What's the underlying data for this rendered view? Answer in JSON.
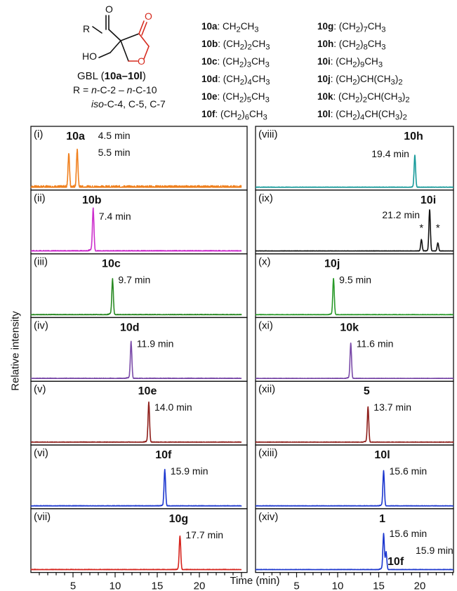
{
  "structure": {
    "r_label": "R",
    "ho_label": "HO",
    "name_prefix": "GBL (",
    "name_bold": "10a–10l",
    "name_suffix": ")",
    "r_range_line1": "R = n-C-2 – n-C-10",
    "r_range_line2": "iso-C-4, C-5, C-7",
    "colors": {
      "lactone": "#d62b1f",
      "skeleton": "#111111"
    }
  },
  "substituents": [
    {
      "id": "10a",
      "formula": "CH2CH3"
    },
    {
      "id": "10b",
      "formula": "(CH2)2CH3"
    },
    {
      "id": "10c",
      "formula": "(CH2)3CH3"
    },
    {
      "id": "10d",
      "formula": "(CH2)4CH3"
    },
    {
      "id": "10e",
      "formula": "(CH2)5CH3"
    },
    {
      "id": "10f",
      "formula": "(CH2)6CH3"
    },
    {
      "id": "10g",
      "formula": "(CH2)7CH3"
    },
    {
      "id": "10h",
      "formula": "(CH2)8CH3"
    },
    {
      "id": "10i",
      "formula": "(CH2)9CH3"
    },
    {
      "id": "10j",
      "formula": "(CH2)CH(CH3)2"
    },
    {
      "id": "10k",
      "formula": "(CH2)2CH(CH3)2"
    },
    {
      "id": "10l",
      "formula": "(CH2)4CH(CH3)2"
    }
  ],
  "axes": {
    "xlabel": "Time (min)",
    "ylabel": "Relative intensity",
    "xticks": [
      5,
      10,
      15,
      20
    ],
    "xlim": [
      0,
      25
    ]
  },
  "chart_data": [
    {
      "type": "line",
      "panel": "(i)",
      "compound": "10a",
      "color": "#f0801e",
      "peaks": [
        {
          "x": 4.5,
          "y": 0.6
        },
        {
          "x": 5.5,
          "y": 0.65
        }
      ],
      "annotations": [
        "4.5 min",
        "5.5 min"
      ],
      "noise": 0.06,
      "tail": 0.05
    },
    {
      "type": "line",
      "panel": "(ii)",
      "compound": "10b",
      "color": "#cc2ecc",
      "peaks": [
        {
          "x": 7.4,
          "y": 0.72
        }
      ],
      "annotations": [
        "7.4 min"
      ],
      "noise": 0.02,
      "tail": 0.25
    },
    {
      "type": "line",
      "panel": "(iii)",
      "compound": "10c",
      "color": "#2a8a24",
      "peaks": [
        {
          "x": 9.7,
          "y": 0.6
        }
      ],
      "annotations": [
        "9.7 min"
      ],
      "noise": 0.015,
      "tail": 0.2
    },
    {
      "type": "line",
      "panel": "(iv)",
      "compound": "10d",
      "color": "#7a4aa8",
      "peaks": [
        {
          "x": 11.9,
          "y": 0.62
        }
      ],
      "annotations": [
        "11.9 min"
      ],
      "noise": 0.015,
      "tail": 0.2
    },
    {
      "type": "line",
      "panel": "(v)",
      "compound": "10e",
      "color": "#8e1e1a",
      "peaks": [
        {
          "x": 14.0,
          "y": 0.68
        }
      ],
      "annotations": [
        "14.0 min"
      ],
      "noise": 0.012,
      "tail": 0.15
    },
    {
      "type": "line",
      "panel": "(vi)",
      "compound": "10f",
      "color": "#1c37cf",
      "peaks": [
        {
          "x": 15.9,
          "y": 0.62
        }
      ],
      "annotations": [
        "15.9 min"
      ],
      "noise": 0.012,
      "tail": 0.15
    },
    {
      "type": "line",
      "panel": "(vii)",
      "compound": "10g",
      "color": "#d6231c",
      "peaks": [
        {
          "x": 17.7,
          "y": 0.58
        }
      ],
      "annotations": [
        "17.7 min"
      ],
      "noise": 0.012,
      "tail": 0.12
    },
    {
      "type": "line",
      "panel": "(viii)",
      "compound": "10h",
      "color": "#169a9a",
      "peaks": [
        {
          "x": 19.4,
          "y": 0.55
        }
      ],
      "annotations": [
        "19.4 min"
      ],
      "noise": 0.01,
      "tail": 0.1
    },
    {
      "type": "line",
      "panel": "(ix)",
      "compound": "10i",
      "color": "#111111",
      "peaks": [
        {
          "x": 20.2,
          "y": 0.2
        },
        {
          "x": 21.2,
          "y": 0.72
        },
        {
          "x": 22.2,
          "y": 0.14
        }
      ],
      "annotations": [
        "21.2 min"
      ],
      "markers": [
        {
          "x": 20.2,
          "label": "*"
        },
        {
          "x": 22.2,
          "label": "*"
        }
      ],
      "noise": 0.008,
      "tail": 0.05
    },
    {
      "type": "line",
      "panel": "(x)",
      "compound": "10j",
      "color": "#2a9a2a",
      "peaks": [
        {
          "x": 9.5,
          "y": 0.62
        }
      ],
      "annotations": [
        "9.5 min"
      ],
      "noise": 0.01,
      "tail": 0.15
    },
    {
      "type": "line",
      "panel": "(xi)",
      "compound": "10k",
      "color": "#7a4aa8",
      "peaks": [
        {
          "x": 11.6,
          "y": 0.6
        }
      ],
      "annotations": [
        "11.6 min"
      ],
      "noise": 0.01,
      "tail": 0.18
    },
    {
      "type": "line",
      "panel": "(xii)",
      "compound": "5",
      "color": "#8e1e1a",
      "peaks": [
        {
          "x": 13.7,
          "y": 0.6
        }
      ],
      "annotations": [
        "13.7 min"
      ],
      "noise": 0.01,
      "tail": 0.15
    },
    {
      "type": "line",
      "panel": "(xiii)",
      "compound": "10l",
      "color": "#1c37cf",
      "peaks": [
        {
          "x": 15.6,
          "y": 0.6
        }
      ],
      "annotations": [
        "15.6 min"
      ],
      "noise": 0.01,
      "tail": 0.15
    },
    {
      "type": "line",
      "panel": "(xiv)",
      "compound": "1",
      "color": "#1c37cf",
      "peaks": [
        {
          "x": 15.6,
          "y": 0.6
        },
        {
          "x": 15.9,
          "y": 0.3
        }
      ],
      "annotations": [
        "15.6 min",
        "15.9 min"
      ],
      "extra_label": "10f",
      "noise": 0.01,
      "tail": 0.2
    }
  ]
}
